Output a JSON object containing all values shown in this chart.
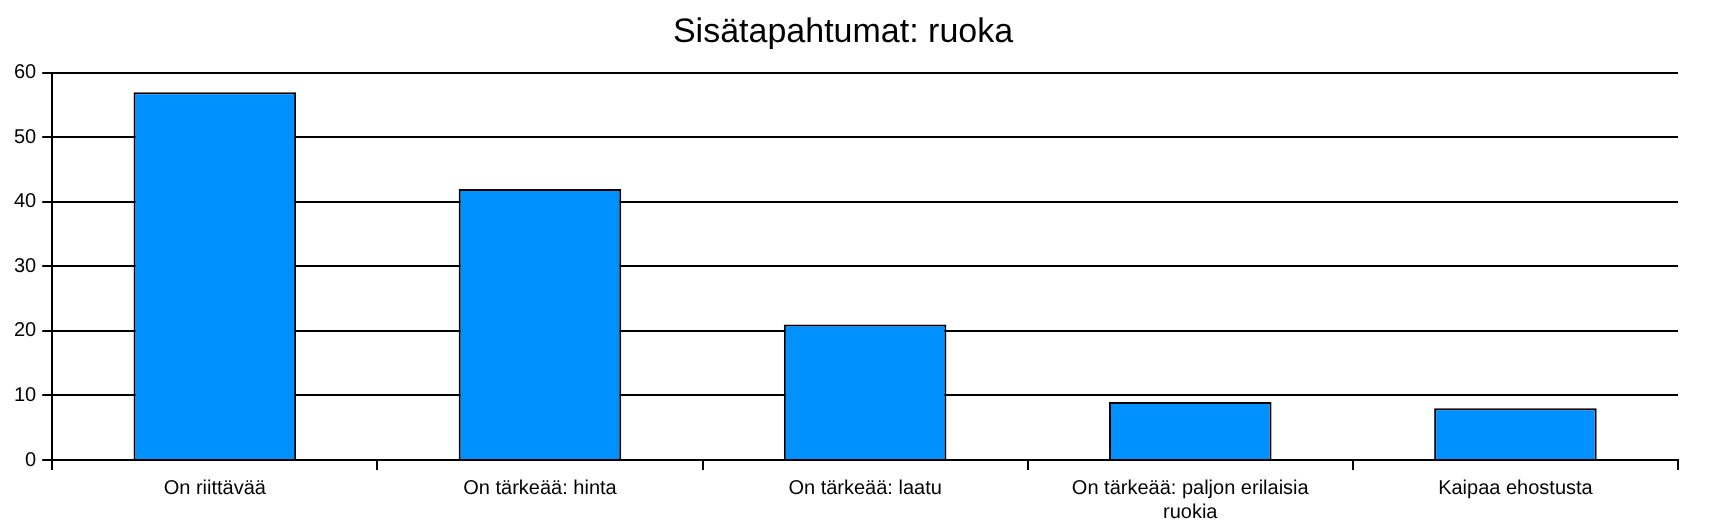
{
  "chart_data": {
    "type": "bar",
    "title": "Sisätapahtumat: ruoka",
    "categories": [
      "On riittävää",
      "On tärkeää: hinta",
      "On tärkeää: laatu",
      "On tärkeää: paljon erilaisia ruokia",
      "Kaipaa ehostusta"
    ],
    "values": [
      57,
      42,
      21,
      9,
      8
    ],
    "color": "#0091ff",
    "ylim": [
      0,
      60
    ],
    "yticks": [
      0,
      10,
      20,
      30,
      40,
      50,
      60
    ],
    "grid": "y",
    "legend": false
  }
}
